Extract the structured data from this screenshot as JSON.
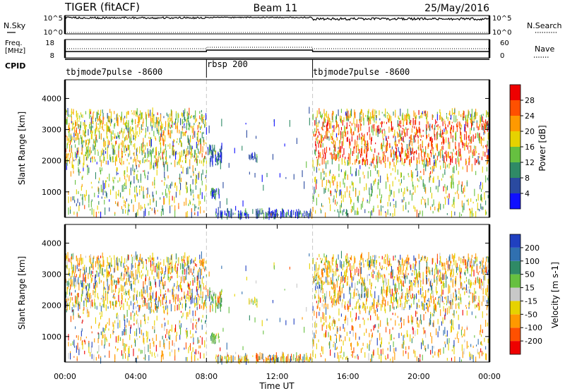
{
  "header": {
    "title": "TIGER (fitACF)",
    "beam": "Beam 11",
    "date": "25/May/2016"
  },
  "top_panels": {
    "nsky_label": "N.Sky",
    "nsky_ticks": [
      "10^5",
      "10^0"
    ],
    "nsearch_ticks": [
      "10^5",
      "10^0"
    ],
    "nsearch_label": "N.Search",
    "freq_label_line1": "Freq.",
    "freq_label_line2": "[MHz]",
    "freq_ticks": [
      "18",
      "8"
    ],
    "nave_ticks": [
      "60",
      "0"
    ],
    "nave_label": "Nave",
    "cpid_label": "CPID",
    "cpid_segments": [
      {
        "label": "tbjmode7pulse -8600",
        "start_hour": 0,
        "end_hour": 8
      },
      {
        "label": "rbsp 200",
        "start_hour": 8,
        "end_hour": 14
      },
      {
        "label": "tbjmode7pulse -8600",
        "start_hour": 14,
        "end_hour": 24
      }
    ]
  },
  "chart_data": [
    {
      "type": "heatmap",
      "title": "",
      "xlabel": "",
      "ylabel": "Slant Range [km]",
      "xlim_hours": [
        0,
        24
      ],
      "ylim": [
        180,
        4600
      ],
      "yticks": [
        "1000",
        "2000",
        "3000",
        "4000"
      ],
      "colorbar_label": "Power [dB]",
      "colorbar_ticks": [
        "4",
        "8",
        "12",
        "16",
        "20",
        "24",
        "28"
      ],
      "colorbar_range": [
        0,
        32
      ],
      "colors": [
        "#1010ff",
        "#2a4aa0",
        "#2f8a66",
        "#66c040",
        "#e6d200",
        "#ff9900",
        "#ff5000",
        "#ee0000"
      ]
    },
    {
      "type": "heatmap",
      "title": "",
      "xlabel": "Time UT",
      "ylabel": "Slant Range [km]",
      "xlim_hours": [
        0,
        24
      ],
      "ylim": [
        180,
        4600
      ],
      "yticks": [
        "1000",
        "2000",
        "3000",
        "4000"
      ],
      "xticks": [
        "00:00",
        "04:00",
        "08:00",
        "12:00",
        "16:00",
        "20:00",
        "00:00"
      ],
      "colorbar_label": "Velocity [m s-1]",
      "colorbar_ticks": [
        "200",
        "100",
        "50",
        "15",
        "-15",
        "-50",
        "-100",
        "-200"
      ],
      "colors": [
        "#2040c0",
        "#3070b0",
        "#2f8a66",
        "#66c040",
        "#c8c8c8",
        "#e6d200",
        "#ff9900",
        "#ff5000",
        "#ee0000"
      ]
    }
  ]
}
